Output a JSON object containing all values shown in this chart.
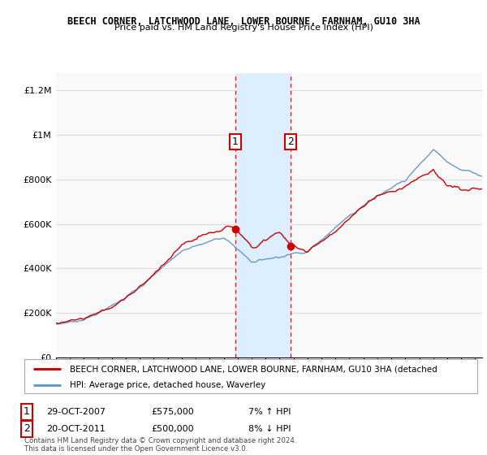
{
  "title": "BEECH CORNER, LATCHWOOD LANE, LOWER BOURNE, FARNHAM, GU10 3HA",
  "subtitle": "Price paid vs. HM Land Registry's House Price Index (HPI)",
  "ylabel_ticks": [
    "£0",
    "£200K",
    "£400K",
    "£600K",
    "£800K",
    "£1M",
    "£1.2M"
  ],
  "ytick_values": [
    0,
    200000,
    400000,
    600000,
    800000,
    1000000,
    1200000
  ],
  "ylim": [
    0,
    1280000
  ],
  "xlim_start": 1995.0,
  "xlim_end": 2025.5,
  "sale1_x": 2007.83,
  "sale1_y": 575000,
  "sale1_label": "1",
  "sale1_date": "29-OCT-2007",
  "sale1_price": "£575,000",
  "sale1_hpi": "7% ↑ HPI",
  "sale2_x": 2011.79,
  "sale2_y": 500000,
  "sale2_label": "2",
  "sale2_date": "20-OCT-2011",
  "sale2_price": "£500,000",
  "sale2_hpi": "8% ↓ HPI",
  "line1_color": "#cc0000",
  "line2_color": "#6699cc",
  "shade_color": "#ddeeff",
  "legend_line1": "BEECH CORNER, LATCHWOOD LANE, LOWER BOURNE, FARNHAM, GU10 3HA (detached",
  "legend_line2": "HPI: Average price, detached house, Waverley",
  "footer": "Contains HM Land Registry data © Crown copyright and database right 2024.\nThis data is licensed under the Open Government Licence v3.0.",
  "bg_color": "#ffffff",
  "plot_bg_color": "#f9f9f9",
  "grid_color": "#dddddd"
}
